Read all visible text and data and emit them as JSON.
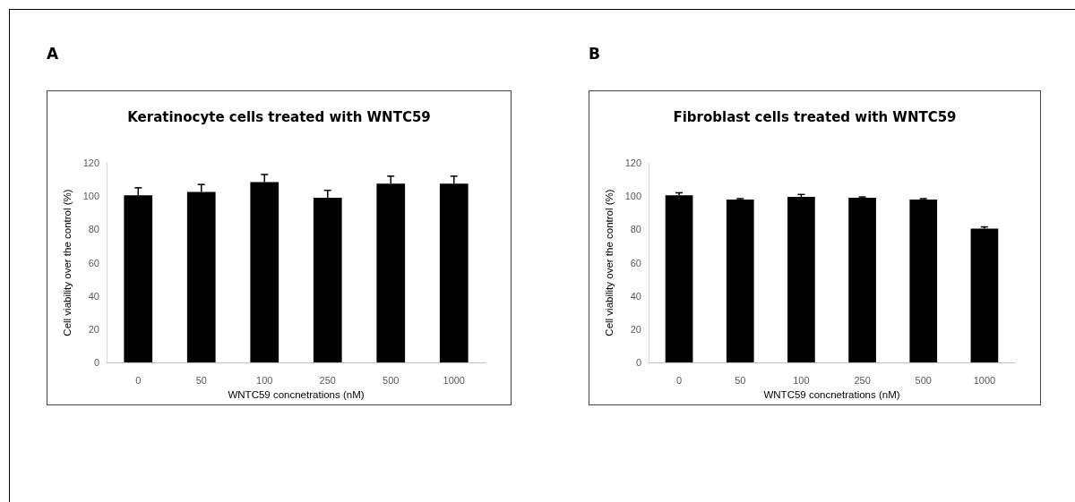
{
  "chart_data": [
    {
      "type": "bar",
      "title": "Keratinocyte cells treated with WNTC59",
      "xlabel": "WNTC59 concnetrations (nM)",
      "ylabel": "Cell viability over the control (%)",
      "annotations": [
        "A"
      ],
      "categories": [
        "0",
        "50",
        "100",
        "250",
        "500",
        "1000"
      ],
      "values": [
        100.5,
        102.5,
        108.5,
        99,
        107.5,
        107.5
      ],
      "color": "#000000",
      "errors": [
        [
          100.5,
          105
        ],
        [
          102.5,
          107
        ],
        [
          108.5,
          113
        ],
        [
          99,
          103.5
        ],
        [
          107.5,
          112
        ],
        [
          107.5,
          112
        ]
      ],
      "ylim": [
        0,
        120
      ],
      "yticks": [
        0,
        20,
        40,
        60,
        80,
        100,
        120
      ],
      "grid": false
    },
    {
      "type": "bar",
      "title": "Fibroblast cells treated with WNTC59",
      "xlabel": "WNTC59 concnetrations (nM)",
      "ylabel": "Cell viability over the control (%)",
      "annotations": [
        "B"
      ],
      "categories": [
        "0",
        "50",
        "100",
        "250",
        "500",
        "1000"
      ],
      "values": [
        100.5,
        98,
        99.5,
        99,
        98,
        80.5
      ],
      "color": "#000000",
      "errors": [
        [
          100.5,
          102
        ],
        [
          98,
          98.5
        ],
        [
          99.5,
          101
        ],
        [
          99,
          99.5
        ],
        [
          98,
          98.5
        ],
        [
          80.5,
          81.5
        ]
      ],
      "ylim": [
        0,
        120
      ],
      "yticks": [
        0,
        20,
        40,
        60,
        80,
        100,
        120
      ],
      "grid": false
    }
  ]
}
